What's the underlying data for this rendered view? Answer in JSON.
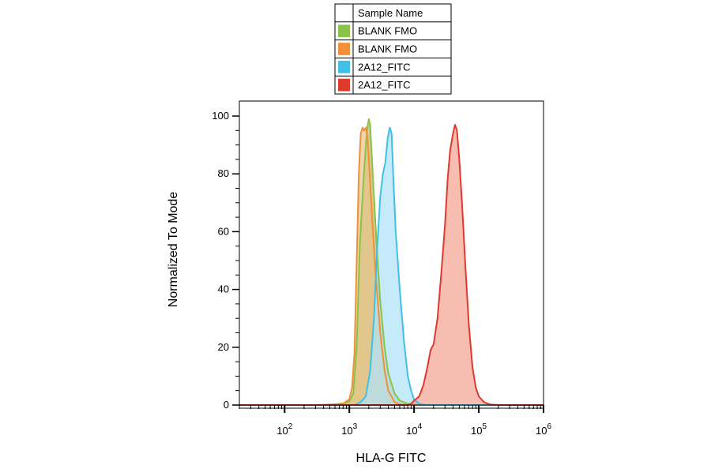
{
  "chart_data": {
    "type": "area",
    "x_scale": "log",
    "xlabel": "HLA-G FITC",
    "ylabel": "Normalized To Mode",
    "xlim": [
      20,
      1000000
    ],
    "ylim": [
      0,
      100
    ],
    "y_ticks": [
      0,
      20,
      40,
      60,
      80,
      100
    ],
    "x_tick_labels": [
      {
        "base": "10",
        "exp": "2"
      },
      {
        "base": "10",
        "exp": "3"
      },
      {
        "base": "10",
        "exp": "4"
      },
      {
        "base": "10",
        "exp": "5"
      },
      {
        "base": "10",
        "exp": "6"
      }
    ],
    "legend": {
      "header": "Sample Name",
      "placement": "top-center, outside plot"
    },
    "series": [
      {
        "name": "BLANK FMO",
        "color": "#8bc34a",
        "fill": "#c4b86a",
        "points": [
          [
            20,
            0
          ],
          [
            300,
            0
          ],
          [
            600,
            0.3
          ],
          [
            800,
            0.6
          ],
          [
            1000,
            1.2
          ],
          [
            1150,
            4
          ],
          [
            1300,
            20
          ],
          [
            1450,
            55
          ],
          [
            1600,
            72
          ],
          [
            1700,
            82
          ],
          [
            1800,
            90
          ],
          [
            1900,
            96
          ],
          [
            2000,
            99
          ],
          [
            2100,
            97
          ],
          [
            2200,
            88
          ],
          [
            2400,
            72
          ],
          [
            2700,
            52
          ],
          [
            3000,
            36
          ],
          [
            3500,
            20
          ],
          [
            4000,
            11
          ],
          [
            5000,
            4
          ],
          [
            6000,
            1.5
          ],
          [
            8000,
            0.5
          ],
          [
            12000,
            0
          ],
          [
            1000000,
            0
          ]
        ]
      },
      {
        "name": "BLANK FMO",
        "color": "#f0913a",
        "fill": "#e8c58a",
        "points": [
          [
            20,
            0
          ],
          [
            500,
            0
          ],
          [
            800,
            0.5
          ],
          [
            1000,
            2
          ],
          [
            1100,
            6
          ],
          [
            1200,
            18
          ],
          [
            1300,
            50
          ],
          [
            1400,
            80
          ],
          [
            1500,
            94
          ],
          [
            1600,
            96
          ],
          [
            1700,
            95
          ],
          [
            1800,
            96
          ],
          [
            1900,
            93
          ],
          [
            2000,
            85
          ],
          [
            2200,
            68
          ],
          [
            2500,
            48
          ],
          [
            3000,
            25
          ],
          [
            3500,
            12
          ],
          [
            4000,
            5
          ],
          [
            5000,
            1
          ],
          [
            6000,
            0.3
          ],
          [
            8000,
            0
          ],
          [
            1000000,
            0
          ]
        ]
      },
      {
        "name": "2A12_FITC",
        "color": "#3ec0e8",
        "fill": "#aee3f8",
        "points": [
          [
            20,
            0
          ],
          [
            1200,
            0
          ],
          [
            1500,
            1
          ],
          [
            1800,
            3
          ],
          [
            2100,
            12
          ],
          [
            2400,
            30
          ],
          [
            2700,
            55
          ],
          [
            3000,
            72
          ],
          [
            3300,
            80
          ],
          [
            3600,
            84
          ],
          [
            3900,
            92
          ],
          [
            4200,
            96
          ],
          [
            4500,
            94
          ],
          [
            4800,
            78
          ],
          [
            5200,
            60
          ],
          [
            6000,
            40
          ],
          [
            7000,
            22
          ],
          [
            8000,
            10
          ],
          [
            9000,
            5
          ],
          [
            10000,
            2
          ],
          [
            12000,
            0.5
          ],
          [
            15000,
            0
          ],
          [
            1000000,
            0
          ]
        ]
      },
      {
        "name": "2A12_FITC",
        "color": "#e03a2e",
        "fill": "#f4a393",
        "points": [
          [
            20,
            0
          ],
          [
            8000,
            0
          ],
          [
            9000,
            0.5
          ],
          [
            10000,
            1.5
          ],
          [
            12000,
            3
          ],
          [
            14000,
            7
          ],
          [
            16000,
            13
          ],
          [
            18000,
            19
          ],
          [
            20000,
            21
          ],
          [
            23000,
            30
          ],
          [
            26000,
            44
          ],
          [
            30000,
            62
          ],
          [
            33000,
            78
          ],
          [
            36000,
            88
          ],
          [
            40000,
            94
          ],
          [
            43000,
            97
          ],
          [
            46000,
            95
          ],
          [
            50000,
            85
          ],
          [
            55000,
            70
          ],
          [
            62000,
            48
          ],
          [
            70000,
            28
          ],
          [
            80000,
            13
          ],
          [
            90000,
            6
          ],
          [
            100000,
            3
          ],
          [
            120000,
            1
          ],
          [
            150000,
            0.2
          ],
          [
            200000,
            0
          ],
          [
            1000000,
            0
          ]
        ]
      }
    ]
  }
}
